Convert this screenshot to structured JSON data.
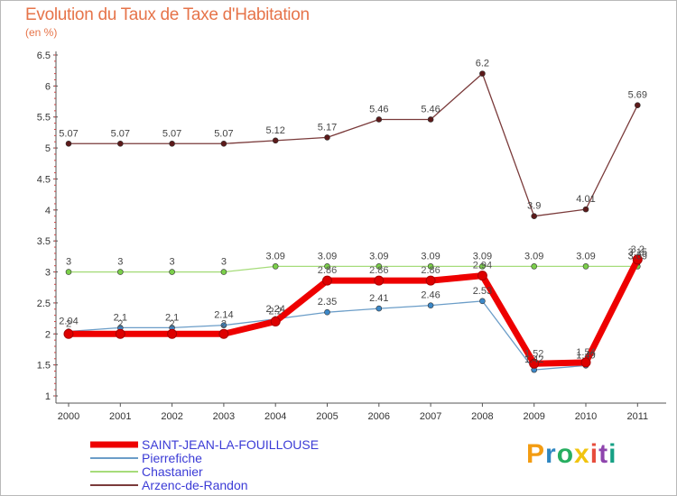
{
  "title": "Evolution du Taux de Taxe d'Habitation",
  "subtitle": "(en %)",
  "brand": {
    "text": "Proxiti",
    "colors": [
      "#f39c12",
      "#2e86c1",
      "#27ae60",
      "#f1c40f",
      "#e74c3c",
      "#8e44ad",
      "#16a085"
    ]
  },
  "chart_data": {
    "type": "line",
    "title": "Evolution du Taux de Taxe d'Habitation",
    "ylabel": "(en %)",
    "xlabel": "",
    "x": [
      "2000",
      "2001",
      "2002",
      "2003",
      "2004",
      "2005",
      "2006",
      "2007",
      "2008",
      "2009",
      "2010",
      "2011"
    ],
    "ylim": [
      1,
      6.5
    ],
    "yticks": [
      "1",
      "1.5",
      "2",
      "2.5",
      "3",
      "3.5",
      "4",
      "4.5",
      "5",
      "5.5",
      "6",
      "6.5"
    ],
    "grid": false,
    "legend_position": "bottom-left",
    "series": [
      {
        "name": "SAINT-JEAN-LA-FOUILLOUSE",
        "color": "#ee0000",
        "marker": "#dd0000",
        "values": [
          2,
          2,
          2,
          2,
          2.2,
          2.86,
          2.86,
          2.86,
          2.94,
          1.52,
          1.54,
          3.2
        ],
        "labels": [
          "2",
          "2",
          "2",
          "2",
          "2.2",
          "2.86",
          "2.86",
          "2.86",
          "2.94",
          "1.52",
          "1.54",
          "3.2"
        ]
      },
      {
        "name": "Pierrefiche",
        "color": "#6b9dc8",
        "marker": "#3c88c8",
        "values": [
          2.04,
          2.1,
          2.1,
          2.14,
          2.24,
          2.35,
          2.41,
          2.46,
          2.53,
          1.42,
          1.49,
          3.15
        ],
        "labels": [
          "2.04",
          "2.1",
          "2.1",
          "2.14",
          "2.24",
          "2.35",
          "2.41",
          "2.46",
          "2.53",
          "1.42",
          "1.49",
          "3.15"
        ]
      },
      {
        "name": "Chastanier",
        "color": "#a6dc7a",
        "marker": "#7bcf4a",
        "values": [
          3,
          3,
          3,
          3,
          3.09,
          3.09,
          3.09,
          3.09,
          3.09,
          3.09,
          3.09,
          3.09
        ],
        "labels": [
          "3",
          "3",
          "3",
          "3",
          "3.09",
          "3.09",
          "3.09",
          "3.09",
          "3.09",
          "3.09",
          "3.09",
          "3.09"
        ]
      },
      {
        "name": "Arzenc-de-Randon",
        "color": "#7a3a3a",
        "marker": "#5c1a1a",
        "values": [
          5.07,
          5.07,
          5.07,
          5.07,
          5.12,
          5.17,
          5.46,
          5.46,
          6.2,
          3.9,
          4.01,
          5.69
        ],
        "labels": [
          "5.07",
          "5.07",
          "5.07",
          "5.07",
          "5.12",
          "5.17",
          "5.46",
          "5.46",
          "6.2",
          "3.9",
          "4.01",
          "5.69"
        ]
      }
    ]
  }
}
